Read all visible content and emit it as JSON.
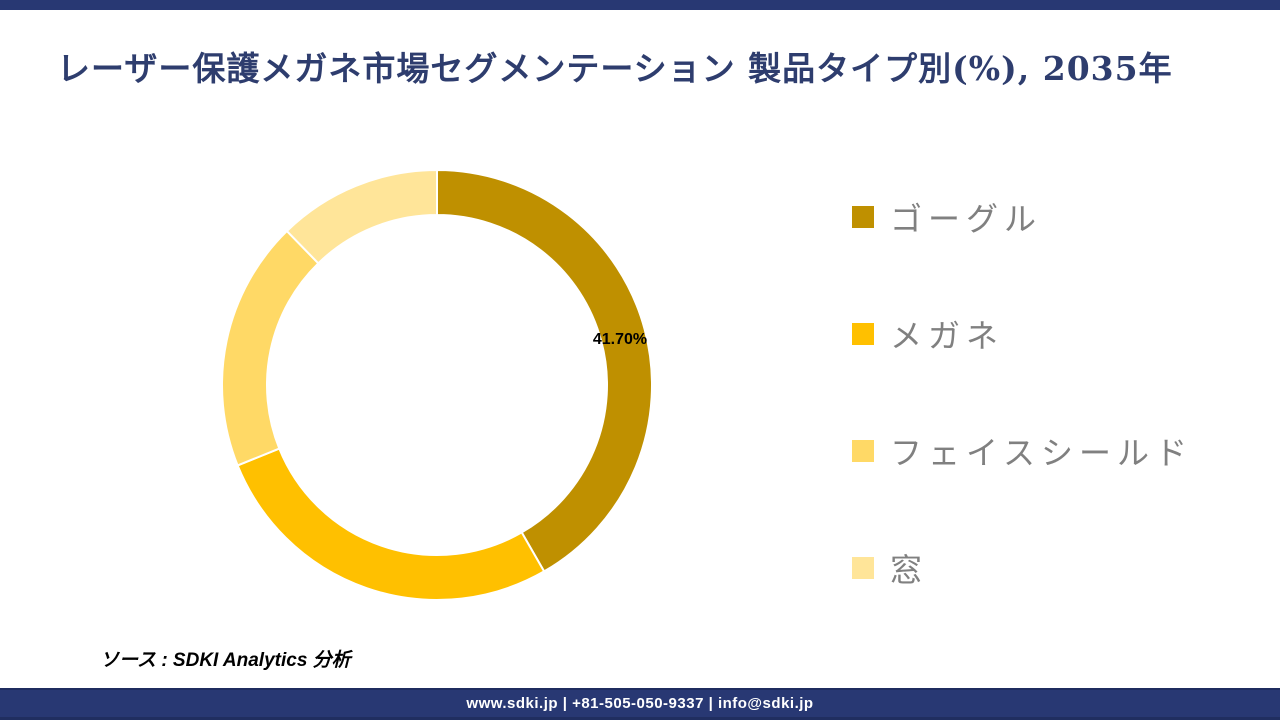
{
  "title": {
    "text": "レーザー保護メガネ市場セグメンテーション 製品タイプ別(%), 2035年",
    "color": "#2E3D6E"
  },
  "chart_data": {
    "type": "pie",
    "subtype": "donut",
    "title": "レーザー保護メガネ市場セグメンテーション 製品タイプ別(%), 2035年",
    "categories": [
      "ゴーグル",
      "メガネ",
      "フェイスシールド",
      "窓"
    ],
    "values": [
      41.7,
      27.2,
      18.8,
      12.3
    ],
    "colors": [
      "#BF9000",
      "#FFC000",
      "#FFD966",
      "#FFE599"
    ],
    "data_label": "41.70%",
    "data_label_segment": "ゴーグル",
    "legend_position": "right",
    "legend_text_color": "#808080",
    "start_angle_deg": 0,
    "direction": "clockwise",
    "donut_hole_ratio": 0.79
  },
  "source_note": "ソース : SDKI Analytics 分析",
  "footer": {
    "text": "www.sdki.jp | +81-505-050-9337 | info@sdki.jp",
    "background": "#283873"
  }
}
